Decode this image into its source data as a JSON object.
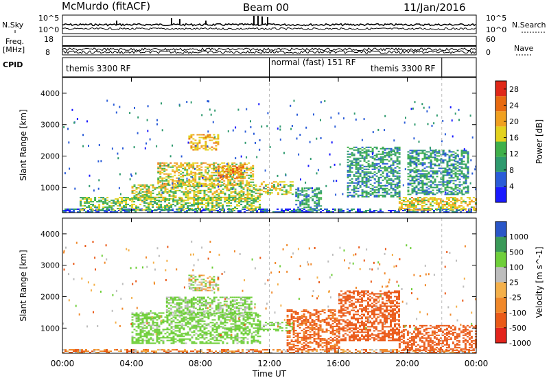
{
  "header": {
    "station": "McMurdo (fitACF)",
    "beam": "Beam 00",
    "date": "11/Jan/2016"
  },
  "top_panels": {
    "nsky_label": "N.Sky",
    "nsearch_label": "N.Search",
    "freq_label_1": "Freq.",
    "freq_label_2": "[MHz]",
    "nave_label": "Nave",
    "cpid_label": "CPID",
    "nsky_ticks": [
      "10^5",
      "10^0"
    ],
    "nsearch_ticks": [
      "10^5",
      "10^0"
    ],
    "freq_ticks": [
      "18",
      "8"
    ],
    "nave_ticks": [
      "60",
      "0"
    ]
  },
  "cpid_segments": [
    {
      "label": "themis 3300 RF",
      "start_hour": 0,
      "end_hour": 12
    },
    {
      "label": "normal (fast) 151 RF",
      "start_hour": 12,
      "end_hour": 22
    },
    {
      "label": "themis 3300 RF",
      "start_hour": 22,
      "end_hour": 24
    }
  ],
  "colors": {
    "power": [
      "#1a1aff",
      "#2a5cd8",
      "#2e9a6e",
      "#3fb04a",
      "#e3d21e",
      "#f0a020",
      "#e86a10",
      "#e02818"
    ],
    "velocity": [
      "#e3241c",
      "#ea5a18",
      "#f0882a",
      "#f4b04a",
      "#bdbdbd",
      "#6fcf3a",
      "#3a9a58",
      "#2a56c8"
    ]
  },
  "chart_data": [
    {
      "type": "heatmap",
      "title": "Power",
      "xlabel": "Time UT",
      "ylabel": "Slant Range [km]",
      "xlim": [
        0,
        24
      ],
      "ylim": [
        200,
        4500
      ],
      "x_ticks": [
        "00:00",
        "04:00",
        "08:00",
        "12:00",
        "16:00",
        "20:00",
        "00:00"
      ],
      "y_ticks": [
        "1000",
        "2000",
        "3000",
        "4000"
      ],
      "colorbar": {
        "label": "Power [dB]",
        "ticks": [
          "4",
          "8",
          "12",
          "16",
          "20",
          "24",
          "28"
        ],
        "range": [
          0,
          30
        ]
      },
      "echo_regions": [
        {
          "t_start": 0.0,
          "t_end": 24.0,
          "r_start": 200,
          "r_end": 330,
          "value": 6
        },
        {
          "t_start": 1.0,
          "t_end": 11.5,
          "r_start": 300,
          "r_end": 700,
          "value": 14
        },
        {
          "t_start": 4.0,
          "t_end": 11.5,
          "r_start": 600,
          "r_end": 1100,
          "value": 16
        },
        {
          "t_start": 5.5,
          "t_end": 11.0,
          "r_start": 1100,
          "r_end": 1800,
          "value": 18
        },
        {
          "t_start": 7.3,
          "t_end": 9.0,
          "r_start": 2200,
          "r_end": 2700,
          "value": 20
        },
        {
          "t_start": 9.0,
          "t_end": 10.5,
          "r_start": 1300,
          "r_end": 1700,
          "value": 22
        },
        {
          "t_start": 11.5,
          "t_end": 13.3,
          "r_start": 800,
          "r_end": 1200,
          "value": 16
        },
        {
          "t_start": 13.5,
          "t_end": 15.0,
          "r_start": 300,
          "r_end": 1000,
          "value": 10
        },
        {
          "t_start": 16.5,
          "t_end": 19.5,
          "r_start": 700,
          "r_end": 2300,
          "value": 10
        },
        {
          "t_start": 19.5,
          "t_end": 24.0,
          "r_start": 300,
          "r_end": 700,
          "value": 18
        },
        {
          "t_start": 20.0,
          "t_end": 23.5,
          "r_start": 800,
          "r_end": 2200,
          "value": 10
        }
      ]
    },
    {
      "type": "heatmap",
      "title": "Velocity",
      "xlabel": "Time UT",
      "ylabel": "Slant Range [km]",
      "xlim": [
        0,
        24
      ],
      "ylim": [
        200,
        4500
      ],
      "x_ticks": [
        "00:00",
        "04:00",
        "08:00",
        "12:00",
        "16:00",
        "20:00",
        "00:00"
      ],
      "y_ticks": [
        "1000",
        "2000",
        "3000",
        "4000"
      ],
      "colorbar": {
        "label": "Velocity [m s^-1]",
        "ticks": [
          "1000",
          "500",
          "100",
          "25",
          "-25",
          "-100",
          "-500",
          "-1000"
        ]
      },
      "echo_regions": [
        {
          "t_start": 0.0,
          "t_end": 24.0,
          "r_start": 200,
          "r_end": 330,
          "value": -60
        },
        {
          "t_start": 4.0,
          "t_end": 11.5,
          "r_start": 500,
          "r_end": 1500,
          "value": 200
        },
        {
          "t_start": 6.0,
          "t_end": 11.0,
          "r_start": 1400,
          "r_end": 2000,
          "value": 150
        },
        {
          "t_start": 7.3,
          "t_end": 9.0,
          "r_start": 2200,
          "r_end": 2700,
          "value": 60
        },
        {
          "t_start": 11.5,
          "t_end": 13.3,
          "r_start": 900,
          "r_end": 1200,
          "value": 200
        },
        {
          "t_start": 13.0,
          "t_end": 16.0,
          "r_start": 300,
          "r_end": 1600,
          "value": -150
        },
        {
          "t_start": 16.0,
          "t_end": 19.5,
          "r_start": 600,
          "r_end": 2200,
          "value": -300
        },
        {
          "t_start": 19.5,
          "t_end": 24.0,
          "r_start": 300,
          "r_end": 1100,
          "value": -300
        }
      ]
    }
  ]
}
